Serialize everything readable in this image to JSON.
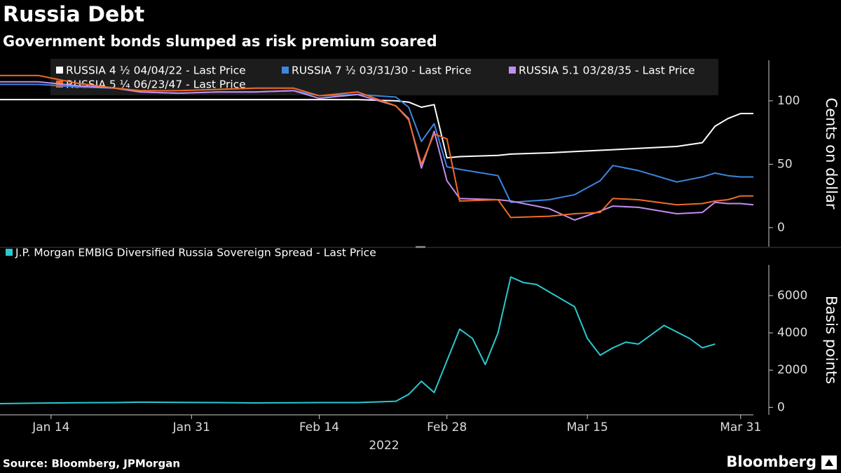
{
  "header": {
    "title": "Russia Debt",
    "subtitle": "Government bonds slumped as risk premium soared"
  },
  "footer": {
    "source": "Source: Bloomberg, JPMorgan",
    "brand": "Bloomberg"
  },
  "chart_data": [
    {
      "type": "line",
      "ylabel": "Cents on dollar",
      "xlim": [
        "2022-01-10",
        "2022-04-01"
      ],
      "ylim": [
        -15,
        132
      ],
      "yticks": [
        0,
        50,
        100
      ],
      "x": [
        "2022-01-10",
        "2022-01-13",
        "2022-01-18",
        "2022-01-21",
        "2022-01-25",
        "2022-01-28",
        "2022-02-02",
        "2022-02-07",
        "2022-02-10",
        "2022-02-14",
        "2022-02-17",
        "2022-02-22",
        "2022-02-23",
        "2022-02-24",
        "2022-02-25",
        "2022-02-28",
        "2022-03-01",
        "2022-03-04",
        "2022-03-07",
        "2022-03-10",
        "2022-03-14",
        "2022-03-16",
        "2022-03-17",
        "2022-03-21",
        "2022-03-24",
        "2022-03-28",
        "2022-03-29",
        "2022-03-30",
        "2022-03-31",
        "2022-04-01"
      ],
      "series": [
        {
          "name": "RUSSIA 4 ½ 04/04/22 - Last Price",
          "color": "#ffffff",
          "values": [
            101,
            101,
            101,
            101,
            101,
            101,
            101,
            101,
            101,
            101,
            101,
            100,
            99,
            95,
            97,
            55,
            56,
            57,
            58,
            59,
            60,
            61,
            61.5,
            62.5,
            64,
            67,
            80,
            86,
            90,
            90
          ]
        },
        {
          "name": "RUSSIA 7 ½ 03/31/30 - Last Price",
          "color": "#3d86e0",
          "values": [
            113,
            113,
            111,
            110,
            107,
            106,
            107,
            107,
            108,
            104,
            105,
            103,
            95,
            68,
            82,
            48,
            46,
            41,
            20,
            22,
            26,
            37,
            49,
            45,
            36,
            40,
            43,
            41,
            40,
            40
          ]
        },
        {
          "name": "RUSSIA 5.1 03/28/35 - Last Price",
          "color": "#c38df0",
          "values": [
            115,
            115,
            112,
            110,
            107,
            106,
            107,
            107,
            108,
            102,
            105,
            96,
            86,
            47,
            76,
            37,
            23,
            22,
            21,
            15,
            6,
            13,
            17,
            16,
            11,
            12,
            20,
            19,
            19,
            18
          ]
        },
        {
          "name": "RUSSIA 5 ¼ 06/23/47 - Last Price",
          "color": "#f26a2a",
          "values": [
            120,
            120,
            114,
            110,
            108,
            108,
            109,
            110,
            110,
            104,
            107,
            96,
            85,
            50,
            74,
            70,
            21,
            22,
            8,
            9,
            11,
            12,
            23,
            22,
            18,
            19,
            21,
            22,
            25,
            25
          ]
        }
      ]
    },
    {
      "type": "line",
      "ylabel": "Basis points",
      "xlabel": "2022",
      "xlim": [
        "2022-01-10",
        "2022-04-01"
      ],
      "xticks": [
        {
          "value": "2022-01-14",
          "label": "Jan 14"
        },
        {
          "value": "2022-01-31",
          "label": "Jan 31"
        },
        {
          "value": "2022-02-14",
          "label": "Feb 14"
        },
        {
          "value": "2022-02-28",
          "label": "Feb 28"
        },
        {
          "value": "2022-03-15",
          "label": "Mar 15"
        },
        {
          "value": "2022-03-31",
          "label": "Mar 31"
        }
      ],
      "ylim": [
        -400,
        7650
      ],
      "yticks": [
        0,
        2000,
        4000,
        6000
      ],
      "x": [
        "2022-01-10",
        "2022-01-13",
        "2022-01-18",
        "2022-01-21",
        "2022-01-25",
        "2022-01-28",
        "2022-02-02",
        "2022-02-07",
        "2022-02-10",
        "2022-02-14",
        "2022-02-17",
        "2022-02-22",
        "2022-02-23",
        "2022-02-24",
        "2022-02-25",
        "2022-02-28",
        "2022-03-01",
        "2022-03-02",
        "2022-03-03",
        "2022-03-04",
        "2022-03-07",
        "2022-03-08",
        "2022-03-09",
        "2022-03-14",
        "2022-03-15",
        "2022-03-16",
        "2022-03-17",
        "2022-03-18",
        "2022-03-21",
        "2022-03-23",
        "2022-03-25",
        "2022-03-28",
        "2022-03-29"
      ],
      "series": [
        {
          "name": "J.P. Morgan EMBIG Diversified Russia Sovereign Spread - Last Price",
          "color": "#2ac9d0",
          "values": [
            200,
            230,
            250,
            260,
            280,
            270,
            260,
            240,
            250,
            260,
            260,
            330,
            700,
            1400,
            800,
            2500,
            4200,
            3700,
            2300,
            4000,
            7000,
            6700,
            6600,
            5400,
            3700,
            2800,
            3200,
            3500,
            3400,
            4400,
            3700,
            3200,
            3400
          ]
        }
      ]
    }
  ]
}
